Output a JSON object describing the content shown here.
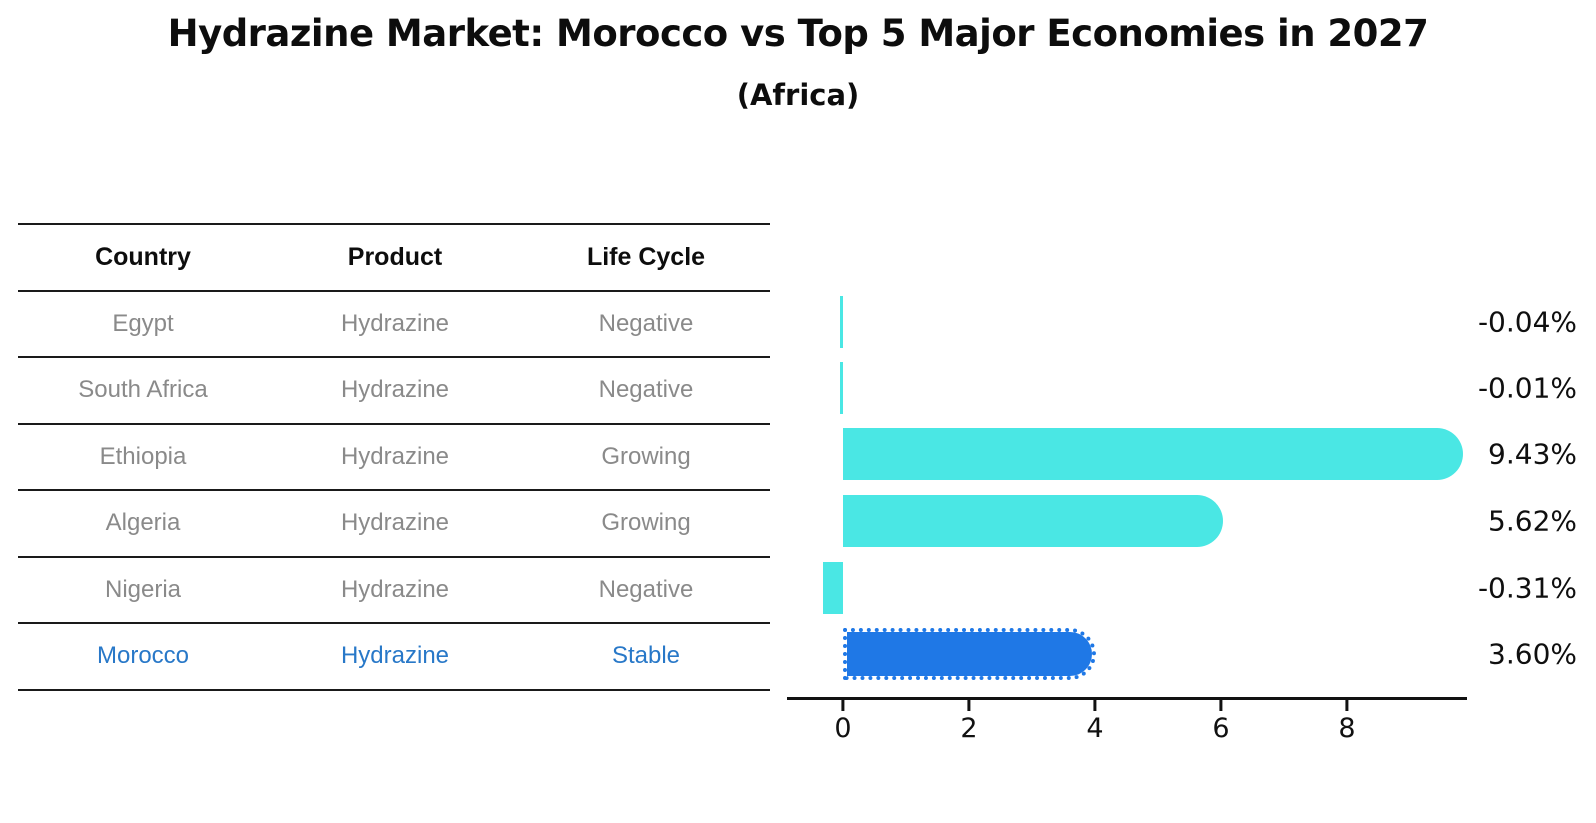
{
  "title": "Hydrazine Market: Morocco vs Top 5 Major Economies in 2027",
  "subtitle": "(Africa)",
  "table": {
    "headers": [
      "Country",
      "Product",
      "Life Cycle"
    ],
    "rows": [
      {
        "country": "Egypt",
        "product": "Hydrazine",
        "life_cycle": "Negative"
      },
      {
        "country": "South Africa",
        "product": "Hydrazine",
        "life_cycle": "Negative"
      },
      {
        "country": "Ethiopia",
        "product": "Hydrazine",
        "life_cycle": "Growing"
      },
      {
        "country": "Algeria",
        "product": "Hydrazine",
        "life_cycle": "Growing"
      },
      {
        "country": "Nigeria",
        "product": "Hydrazine",
        "life_cycle": "Negative"
      },
      {
        "country": "Morocco",
        "product": "Hydrazine",
        "life_cycle": "Stable"
      }
    ],
    "highlight_row": "Morocco"
  },
  "chart_data": {
    "type": "bar",
    "orientation": "horizontal",
    "categories": [
      "Egypt",
      "South Africa",
      "Ethiopia",
      "Algeria",
      "Nigeria",
      "Morocco"
    ],
    "values": [
      -0.04,
      -0.01,
      9.43,
      5.62,
      -0.31,
      3.6
    ],
    "value_labels": [
      "-0.04%",
      "-0.01%",
      "9.43%",
      "5.62%",
      "-0.31%",
      "3.60%"
    ],
    "xticks": [
      "0",
      "2",
      "4",
      "6",
      "8"
    ],
    "xtick_values": [
      0,
      2,
      4,
      6,
      8
    ],
    "xlim": [
      -0.9,
      9.9
    ],
    "highlight_index": 5,
    "bar_color": "#4ae7e4",
    "highlight_bar_color": "#1f78e6",
    "highlight_text_color": "#2878c8",
    "grid": false,
    "legend": false
  }
}
